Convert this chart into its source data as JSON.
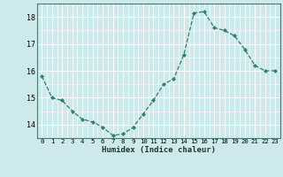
{
  "x": [
    0,
    1,
    2,
    3,
    4,
    5,
    6,
    7,
    8,
    9,
    10,
    11,
    12,
    13,
    14,
    15,
    16,
    17,
    18,
    19,
    20,
    21,
    22,
    23
  ],
  "y": [
    15.8,
    15.0,
    14.9,
    14.5,
    14.2,
    14.1,
    13.9,
    13.6,
    13.65,
    13.9,
    14.4,
    14.9,
    15.5,
    15.7,
    16.6,
    18.15,
    18.2,
    17.6,
    17.5,
    17.3,
    16.8,
    16.2,
    16.0,
    16.0
  ],
  "xlabel": "Humidex (Indice chaleur)",
  "ylim": [
    13.5,
    18.5
  ],
  "xlim": [
    -0.5,
    23.5
  ],
  "yticks": [
    14,
    15,
    16,
    17,
    18
  ],
  "line_color": "#2e7d6e",
  "bg_color": "#cde9eb",
  "grid_major_color": "#ffffff",
  "grid_minor_h_color": "#ddbcbc",
  "grid_minor_v_color": "#ffffff",
  "xlabel_fontsize": 6.5,
  "ytick_fontsize": 6.0,
  "xtick_fontsize": 5.2
}
